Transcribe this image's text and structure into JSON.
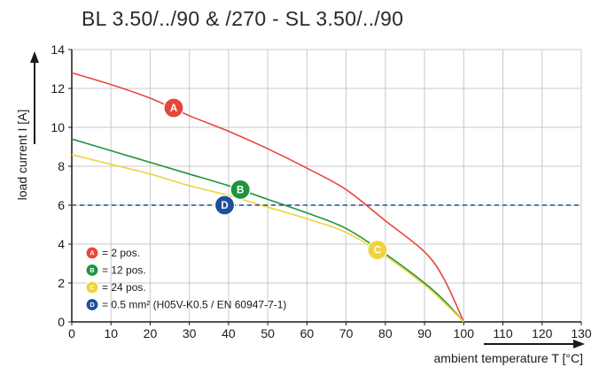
{
  "chart_data": {
    "type": "line",
    "title": "BL 3.50/../90 & /270 - SL 3.50/../90",
    "xlabel": "ambient temperature T [°C]",
    "ylabel": "load current I [A]",
    "xlim": [
      0,
      130
    ],
    "ylim": [
      0,
      14
    ],
    "xticks": [
      0,
      10,
      20,
      30,
      40,
      50,
      60,
      70,
      80,
      90,
      100,
      110,
      120,
      130
    ],
    "yticks": [
      0,
      2,
      4,
      6,
      8,
      10,
      12,
      14
    ],
    "grid": true,
    "legend_position": "bottom-left",
    "series": [
      {
        "name": "= 2 pos.",
        "badge": "A",
        "color": "#e8463a",
        "x": [
          0,
          10,
          20,
          30,
          40,
          50,
          60,
          70,
          80,
          90,
          95,
          100
        ],
        "y": [
          12.8,
          12.2,
          11.5,
          10.6,
          9.8,
          8.9,
          7.9,
          6.8,
          5.2,
          3.6,
          2.2,
          0
        ]
      },
      {
        "name": "= 12 pos.",
        "badge": "B",
        "color": "#1e9440",
        "x": [
          0,
          10,
          20,
          30,
          40,
          50,
          60,
          70,
          80,
          90,
          95,
          100
        ],
        "y": [
          9.4,
          8.8,
          8.2,
          7.6,
          7.0,
          6.3,
          5.6,
          4.8,
          3.5,
          2.0,
          1.1,
          0
        ]
      },
      {
        "name": "= 24 pos.",
        "badge": "C",
        "color": "#f0d23a",
        "x": [
          0,
          10,
          20,
          30,
          40,
          50,
          60,
          70,
          80,
          90,
          95,
          100
        ],
        "y": [
          8.6,
          8.1,
          7.6,
          7.0,
          6.5,
          5.9,
          5.3,
          4.6,
          3.4,
          1.9,
          1.0,
          0
        ]
      },
      {
        "name": "= 0.5 mm² (H05V-K0.5 / EN 60947-7-1)",
        "badge": "D",
        "color": "#1f4e9c",
        "style": "dashed",
        "x": [
          0,
          130
        ],
        "y": [
          6,
          6
        ]
      }
    ],
    "annotations": [
      {
        "badge": "A",
        "x": 26,
        "y": 11.0
      },
      {
        "badge": "B",
        "x": 43,
        "y": 6.8
      },
      {
        "badge": "C",
        "x": 78,
        "y": 3.7
      },
      {
        "badge": "D",
        "x": 39,
        "y": 6.0
      }
    ]
  }
}
